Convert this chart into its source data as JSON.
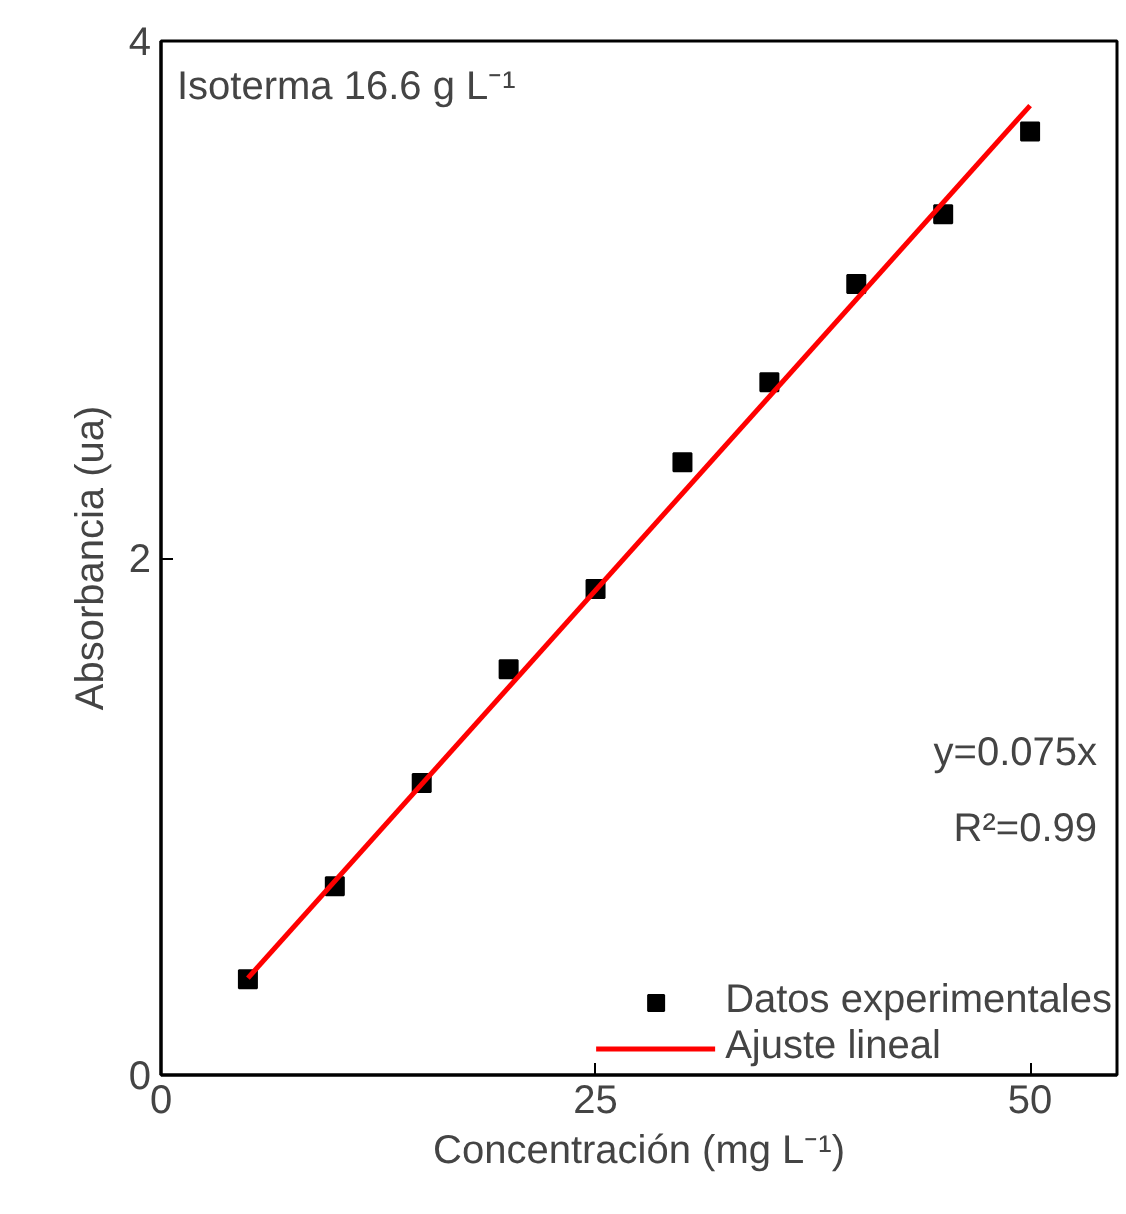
{
  "chart_data": {
    "type": "scatter",
    "xlabel": "Concentración (mg L⁻¹)",
    "ylabel": "Absorbancia (ua)",
    "annotations": [
      "Isoterma 16.6 g L⁻¹",
      "y=0.075x",
      "R²=0.99"
    ],
    "xlim": [
      0,
      55
    ],
    "xticks": [
      0,
      25,
      50
    ],
    "ylim": [
      0,
      4
    ],
    "yticks": [
      0,
      2,
      4
    ],
    "grid": false,
    "legend": "bottom right",
    "series": [
      {
        "name": "Datos experimentales",
        "marker": "square",
        "color": "#000000",
        "x": [
          5,
          10,
          15,
          20,
          25,
          30,
          35,
          40,
          45,
          50
        ],
        "values": [
          0.37,
          0.73,
          1.13,
          1.57,
          1.88,
          2.37,
          2.68,
          3.06,
          3.33,
          3.65
        ]
      },
      {
        "name": "Ajuste lineal",
        "type": "line",
        "color": "#ff0000",
        "x": [
          5,
          50
        ],
        "values": [
          0.375,
          3.75
        ]
      }
    ]
  }
}
